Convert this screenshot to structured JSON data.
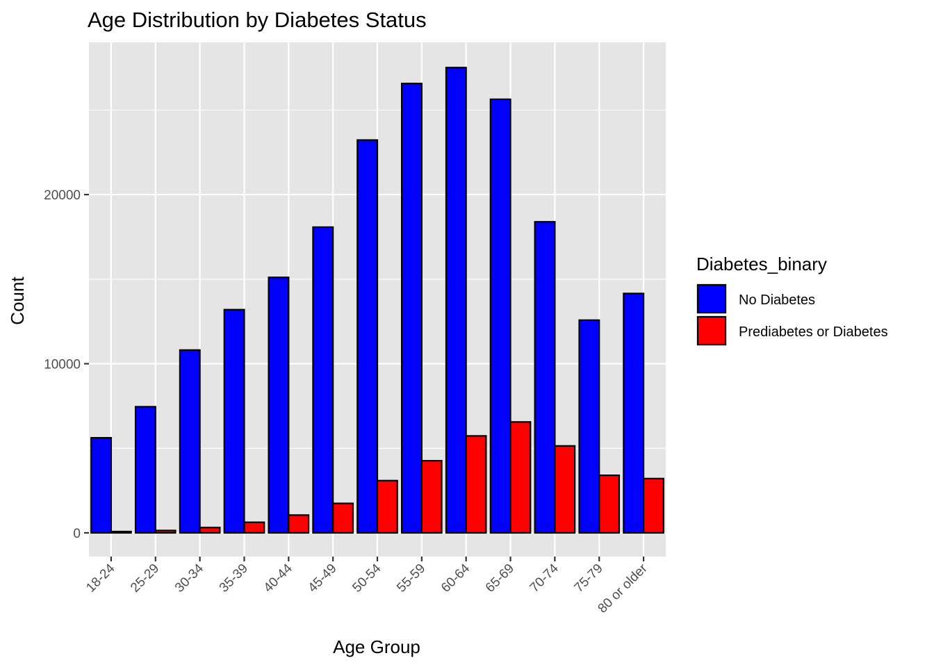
{
  "chart_data": {
    "type": "bar",
    "title": "Age Distribution by Diabetes Status",
    "xlabel": "Age Group",
    "ylabel": "Count",
    "categories": [
      "18-24",
      "25-29",
      "30-34",
      "35-39",
      "40-44",
      "45-49",
      "50-54",
      "55-59",
      "60-64",
      "65-69",
      "70-74",
      "75-79",
      "80 or older"
    ],
    "series": [
      {
        "name": "No Diabetes",
        "color": "#0000ff",
        "values": [
          5622,
          7458,
          10809,
          13197,
          15106,
          18077,
          23226,
          26569,
          27511,
          25636,
          18392,
          12577,
          14154
        ]
      },
      {
        "name": "Prediabetes or Diabetes",
        "color": "#ff0000",
        "values": [
          78,
          140,
          314,
          626,
          1051,
          1742,
          3088,
          4263,
          5733,
          6558,
          5141,
          3403,
          3209
        ]
      }
    ],
    "y_ticks": [
      0,
      10000,
      20000
    ],
    "ylim": [
      -1400,
      29000
    ],
    "legend": {
      "title": "Diabetes_binary",
      "position": "right"
    },
    "grid": true,
    "panel_color": "#e5e5e5",
    "grid_color": "#ffffff"
  }
}
